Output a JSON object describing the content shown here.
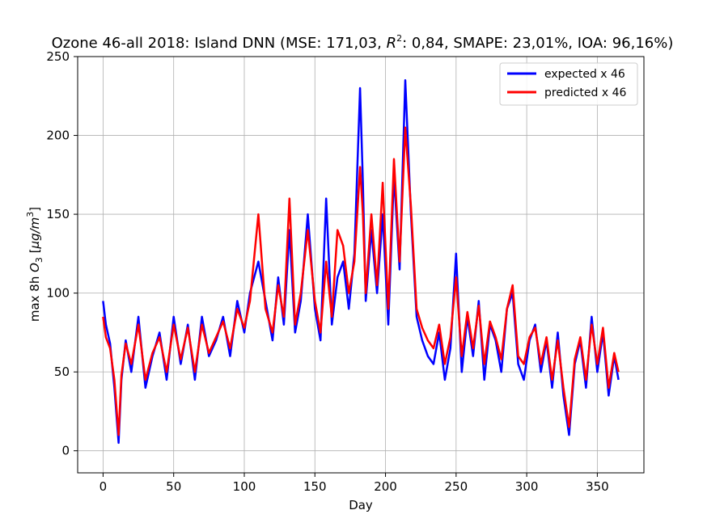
{
  "chart_data": {
    "type": "line",
    "title": "Ozone 46-all 2018: Island DNN (MSE: 171,03, R²: 0,84, SMAPE: 23,01%, IOA: 96,16%)",
    "title_parts": {
      "prefix": "Ozone 46-all 2018: Island DNN (MSE: 171,03, ",
      "r2_base": "R",
      "r2_sup": "2",
      "suffix": ": 0,84, SMAPE: 23,01%, IOA: 96,16%)"
    },
    "xlabel": "Day",
    "ylabel": "max 8h O3 [µg/m3]",
    "ylabel_parts": {
      "prefix": "max 8h ",
      "o_base": "O",
      "o_sub": "3",
      "unit_open": " [",
      "unit_mu": "µg/m",
      "unit_sup": "3",
      "unit_close": "]"
    },
    "xlim": [
      -18,
      383
    ],
    "ylim": [
      -14,
      250
    ],
    "x_ticks": [
      0,
      50,
      100,
      150,
      200,
      250,
      300,
      350
    ],
    "y_ticks": [
      0,
      50,
      100,
      150,
      200,
      250
    ],
    "grid": true,
    "legend_position": "upper right",
    "series": [
      {
        "name": "expected x 46",
        "color": "#0000ff",
        "x": [
          0,
          2,
          5,
          8,
          11,
          13,
          16,
          20,
          25,
          30,
          35,
          40,
          45,
          50,
          55,
          60,
          65,
          70,
          75,
          80,
          85,
          90,
          95,
          100,
          104,
          110,
          115,
          120,
          124,
          128,
          132,
          136,
          140,
          145,
          150,
          154,
          158,
          162,
          166,
          170,
          174,
          178,
          182,
          184,
          186,
          190,
          194,
          198,
          202,
          206,
          210,
          214,
          218,
          222,
          226,
          230,
          234,
          238,
          242,
          246,
          250,
          254,
          258,
          262,
          266,
          270,
          274,
          278,
          282,
          286,
          290,
          294,
          298,
          302,
          306,
          310,
          314,
          318,
          322,
          326,
          330,
          334,
          338,
          342,
          346,
          350,
          354,
          358,
          362,
          365
        ],
        "values": [
          95,
          80,
          68,
          40,
          5,
          45,
          70,
          50,
          85,
          40,
          60,
          75,
          45,
          85,
          55,
          80,
          45,
          85,
          60,
          70,
          85,
          60,
          95,
          75,
          100,
          120,
          95,
          70,
          110,
          80,
          140,
          75,
          95,
          150,
          90,
          70,
          160,
          80,
          110,
          120,
          90,
          125,
          230,
          170,
          95,
          140,
          100,
          150,
          80,
          175,
          115,
          235,
          150,
          85,
          70,
          60,
          55,
          75,
          45,
          65,
          125,
          50,
          85,
          60,
          95,
          45,
          80,
          70,
          50,
          90,
          100,
          55,
          45,
          70,
          80,
          50,
          70,
          40,
          75,
          35,
          10,
          55,
          70,
          40,
          85,
          50,
          75,
          35,
          60,
          45
        ]
      },
      {
        "name": "predicted x 46",
        "color": "#ff0000",
        "x": [
          0,
          2,
          5,
          8,
          11,
          13,
          16,
          20,
          25,
          30,
          35,
          40,
          45,
          50,
          55,
          60,
          65,
          70,
          75,
          80,
          85,
          90,
          95,
          100,
          104,
          110,
          115,
          120,
          124,
          128,
          132,
          136,
          140,
          145,
          150,
          154,
          158,
          162,
          166,
          170,
          174,
          178,
          182,
          184,
          186,
          190,
          194,
          198,
          202,
          206,
          210,
          214,
          218,
          222,
          226,
          230,
          234,
          238,
          242,
          246,
          250,
          254,
          258,
          262,
          266,
          270,
          274,
          278,
          282,
          286,
          290,
          294,
          298,
          302,
          306,
          310,
          314,
          318,
          322,
          326,
          330,
          334,
          338,
          342,
          346,
          350,
          354,
          358,
          362,
          365
        ],
        "values": [
          85,
          72,
          65,
          45,
          10,
          48,
          68,
          55,
          80,
          45,
          62,
          72,
          50,
          80,
          58,
          78,
          50,
          80,
          62,
          72,
          82,
          65,
          90,
          78,
          95,
          150,
          90,
          75,
          105,
          85,
          160,
          80,
          100,
          140,
          95,
          75,
          120,
          85,
          140,
          130,
          100,
          120,
          180,
          150,
          100,
          150,
          105,
          170,
          90,
          185,
          120,
          205,
          155,
          90,
          78,
          70,
          65,
          80,
          55,
          72,
          110,
          60,
          88,
          65,
          92,
          55,
          82,
          72,
          58,
          90,
          105,
          60,
          55,
          72,
          78,
          55,
          72,
          45,
          70,
          40,
          15,
          58,
          72,
          45,
          80,
          55,
          78,
          40,
          62,
          50
        ]
      }
    ]
  }
}
